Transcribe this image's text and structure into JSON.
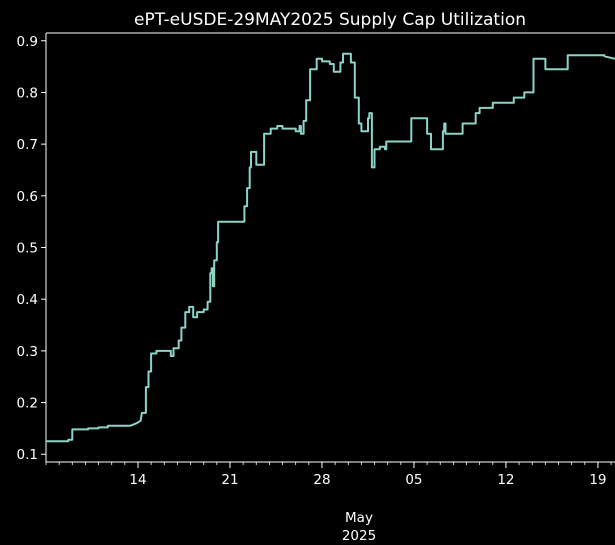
{
  "chart_data": {
    "type": "line",
    "title": "ePT-eUSDE-29MAY2025 Supply Cap Utilization",
    "xlabel": "",
    "ylabel": "",
    "x_tick_labels": [
      "14",
      "21",
      "28",
      "05",
      "12",
      "19"
    ],
    "x_tick_days": [
      14,
      21,
      28,
      35,
      42,
      49
    ],
    "x_secondary_label": [
      "May",
      "2025"
    ],
    "xlim_days": [
      7,
      50.3
    ],
    "y_ticks": [
      0.1,
      0.2,
      0.3,
      0.4,
      0.5,
      0.6,
      0.7,
      0.8,
      0.9
    ],
    "y_tick_labels": [
      "0.1",
      "0.2",
      "0.3",
      "0.4",
      "0.5",
      "0.6",
      "0.7",
      "0.8",
      "0.9"
    ],
    "ylim": [
      0.085,
      0.915
    ],
    "grid": false,
    "colors": {
      "background": "#000000",
      "series": "#8dd3c7",
      "axis": "#ffffff"
    },
    "series": [
      {
        "name": "",
        "points": [
          [
            7.0,
            0.125
          ],
          [
            8.7,
            0.125
          ],
          [
            8.7,
            0.128
          ],
          [
            9.0,
            0.128
          ],
          [
            9.0,
            0.148
          ],
          [
            10.2,
            0.148
          ],
          [
            10.2,
            0.15
          ],
          [
            11.0,
            0.15
          ],
          [
            11.0,
            0.152
          ],
          [
            11.7,
            0.152
          ],
          [
            11.7,
            0.155
          ],
          [
            13.4,
            0.155
          ],
          [
            13.9,
            0.16
          ],
          [
            14.2,
            0.165
          ],
          [
            14.3,
            0.18
          ],
          [
            14.6,
            0.18
          ],
          [
            14.6,
            0.23
          ],
          [
            14.8,
            0.23
          ],
          [
            14.8,
            0.26
          ],
          [
            15.0,
            0.26
          ],
          [
            15.0,
            0.295
          ],
          [
            15.4,
            0.295
          ],
          [
            15.4,
            0.3
          ],
          [
            16.5,
            0.3
          ],
          [
            16.5,
            0.29
          ],
          [
            16.7,
            0.29
          ],
          [
            16.7,
            0.305
          ],
          [
            17.1,
            0.305
          ],
          [
            17.1,
            0.32
          ],
          [
            17.3,
            0.32
          ],
          [
            17.3,
            0.345
          ],
          [
            17.6,
            0.345
          ],
          [
            17.6,
            0.375
          ],
          [
            17.9,
            0.375
          ],
          [
            17.9,
            0.385
          ],
          [
            18.2,
            0.385
          ],
          [
            18.2,
            0.365
          ],
          [
            18.5,
            0.365
          ],
          [
            18.5,
            0.375
          ],
          [
            19.0,
            0.375
          ],
          [
            19.0,
            0.38
          ],
          [
            19.3,
            0.38
          ],
          [
            19.3,
            0.395
          ],
          [
            19.5,
            0.395
          ],
          [
            19.5,
            0.45
          ],
          [
            19.6,
            0.45
          ],
          [
            19.6,
            0.46
          ],
          [
            19.7,
            0.46
          ],
          [
            19.7,
            0.425
          ],
          [
            19.8,
            0.425
          ],
          [
            19.8,
            0.475
          ],
          [
            20.0,
            0.475
          ],
          [
            20.0,
            0.51
          ],
          [
            20.1,
            0.51
          ],
          [
            20.1,
            0.55
          ],
          [
            22.1,
            0.55
          ],
          [
            22.1,
            0.58
          ],
          [
            22.3,
            0.58
          ],
          [
            22.3,
            0.615
          ],
          [
            22.5,
            0.615
          ],
          [
            22.5,
            0.655
          ],
          [
            22.6,
            0.655
          ],
          [
            22.6,
            0.685
          ],
          [
            23.0,
            0.685
          ],
          [
            23.0,
            0.66
          ],
          [
            23.6,
            0.66
          ],
          [
            23.6,
            0.72
          ],
          [
            24.1,
            0.72
          ],
          [
            24.1,
            0.73
          ],
          [
            24.6,
            0.73
          ],
          [
            24.6,
            0.735
          ],
          [
            25.0,
            0.735
          ],
          [
            25.0,
            0.73
          ],
          [
            26.0,
            0.73
          ],
          [
            26.0,
            0.725
          ],
          [
            26.3,
            0.725
          ],
          [
            26.3,
            0.735
          ],
          [
            26.4,
            0.735
          ],
          [
            26.4,
            0.72
          ],
          [
            26.6,
            0.72
          ],
          [
            26.6,
            0.745
          ],
          [
            26.8,
            0.745
          ],
          [
            26.8,
            0.785
          ],
          [
            27.1,
            0.785
          ],
          [
            27.1,
            0.845
          ],
          [
            27.6,
            0.845
          ],
          [
            27.6,
            0.865
          ],
          [
            28.0,
            0.865
          ],
          [
            28.0,
            0.86
          ],
          [
            28.6,
            0.86
          ],
          [
            28.6,
            0.855
          ],
          [
            28.9,
            0.855
          ],
          [
            28.9,
            0.84
          ],
          [
            29.4,
            0.84
          ],
          [
            29.4,
            0.858
          ],
          [
            29.6,
            0.858
          ],
          [
            29.6,
            0.875
          ],
          [
            30.2,
            0.875
          ],
          [
            30.2,
            0.858
          ],
          [
            30.5,
            0.858
          ],
          [
            30.5,
            0.79
          ],
          [
            30.8,
            0.79
          ],
          [
            30.8,
            0.74
          ],
          [
            31.0,
            0.74
          ],
          [
            31.0,
            0.725
          ],
          [
            31.5,
            0.725
          ],
          [
            31.5,
            0.75
          ],
          [
            31.6,
            0.75
          ],
          [
            31.6,
            0.76
          ],
          [
            31.8,
            0.76
          ],
          [
            31.8,
            0.655
          ],
          [
            32.0,
            0.655
          ],
          [
            32.0,
            0.69
          ],
          [
            32.4,
            0.69
          ],
          [
            32.4,
            0.695
          ],
          [
            32.8,
            0.695
          ],
          [
            32.8,
            0.69
          ],
          [
            32.9,
            0.69
          ],
          [
            32.9,
            0.705
          ],
          [
            34.8,
            0.705
          ],
          [
            34.8,
            0.75
          ],
          [
            36.0,
            0.75
          ],
          [
            36.0,
            0.72
          ],
          [
            36.3,
            0.72
          ],
          [
            36.3,
            0.69
          ],
          [
            37.2,
            0.69
          ],
          [
            37.2,
            0.725
          ],
          [
            37.3,
            0.725
          ],
          [
            37.3,
            0.74
          ],
          [
            37.4,
            0.74
          ],
          [
            37.4,
            0.72
          ],
          [
            38.7,
            0.72
          ],
          [
            38.7,
            0.74
          ],
          [
            39.7,
            0.74
          ],
          [
            39.7,
            0.76
          ],
          [
            40.0,
            0.76
          ],
          [
            40.0,
            0.77
          ],
          [
            41.0,
            0.77
          ],
          [
            41.0,
            0.78
          ],
          [
            42.6,
            0.78
          ],
          [
            42.6,
            0.79
          ],
          [
            43.4,
            0.79
          ],
          [
            43.4,
            0.8
          ],
          [
            44.1,
            0.8
          ],
          [
            44.1,
            0.865
          ],
          [
            45.0,
            0.865
          ],
          [
            45.0,
            0.845
          ],
          [
            46.7,
            0.845
          ],
          [
            46.7,
            0.872
          ],
          [
            49.5,
            0.872
          ],
          [
            49.5,
            0.87
          ],
          [
            50.3,
            0.865
          ]
        ]
      }
    ]
  }
}
